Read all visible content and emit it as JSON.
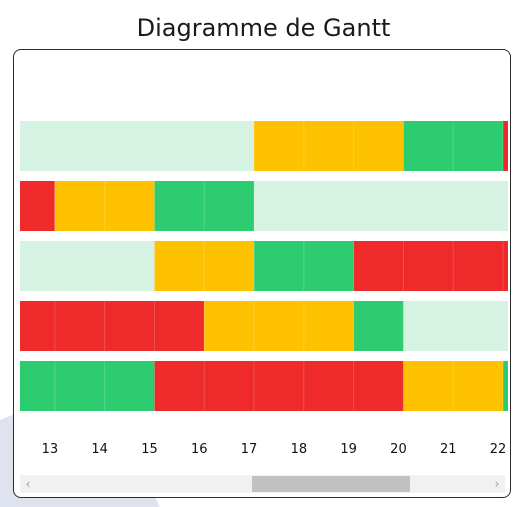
{
  "title": "Diagramme de Gantt",
  "scrollbar": {
    "left_arrow": "‹",
    "right_arrow": "›"
  },
  "colors": {
    "empty": "#d5f2e3",
    "yellow": "#ffc200",
    "green": "#2ecc71",
    "red": "#ee2a2a",
    "background_accent": "#dfe3ef"
  },
  "chart_data": {
    "type": "gantt",
    "title": "Diagramme de Gantt",
    "x_ticks": [
      "13",
      "14",
      "15",
      "16",
      "17",
      "18",
      "19",
      "20",
      "21",
      "22"
    ],
    "x_range": [
      12.4,
      22.2
    ],
    "rows": [
      {
        "segments": [
          {
            "start": 12.4,
            "end": 17.1,
            "status": "empty"
          },
          {
            "start": 17.1,
            "end": 20.1,
            "status": "yellow"
          },
          {
            "start": 20.1,
            "end": 22.1,
            "status": "green"
          },
          {
            "start": 22.1,
            "end": 22.2,
            "status": "red"
          }
        ]
      },
      {
        "segments": [
          {
            "start": 12.4,
            "end": 13.1,
            "status": "red"
          },
          {
            "start": 13.1,
            "end": 15.1,
            "status": "yellow"
          },
          {
            "start": 15.1,
            "end": 17.1,
            "status": "green"
          },
          {
            "start": 17.1,
            "end": 22.2,
            "status": "empty"
          }
        ]
      },
      {
        "segments": [
          {
            "start": 12.4,
            "end": 15.1,
            "status": "empty"
          },
          {
            "start": 15.1,
            "end": 17.1,
            "status": "yellow"
          },
          {
            "start": 17.1,
            "end": 19.1,
            "status": "green"
          },
          {
            "start": 19.1,
            "end": 22.2,
            "status": "red"
          }
        ]
      },
      {
        "segments": [
          {
            "start": 12.4,
            "end": 16.1,
            "status": "red"
          },
          {
            "start": 16.1,
            "end": 19.1,
            "status": "yellow"
          },
          {
            "start": 19.1,
            "end": 20.1,
            "status": "green"
          },
          {
            "start": 20.1,
            "end": 22.2,
            "status": "empty"
          }
        ]
      },
      {
        "segments": [
          {
            "start": 12.4,
            "end": 15.1,
            "status": "green"
          },
          {
            "start": 15.1,
            "end": 20.1,
            "status": "red"
          },
          {
            "start": 20.1,
            "end": 22.1,
            "status": "yellow"
          },
          {
            "start": 22.1,
            "end": 22.2,
            "status": "green"
          }
        ]
      }
    ]
  }
}
